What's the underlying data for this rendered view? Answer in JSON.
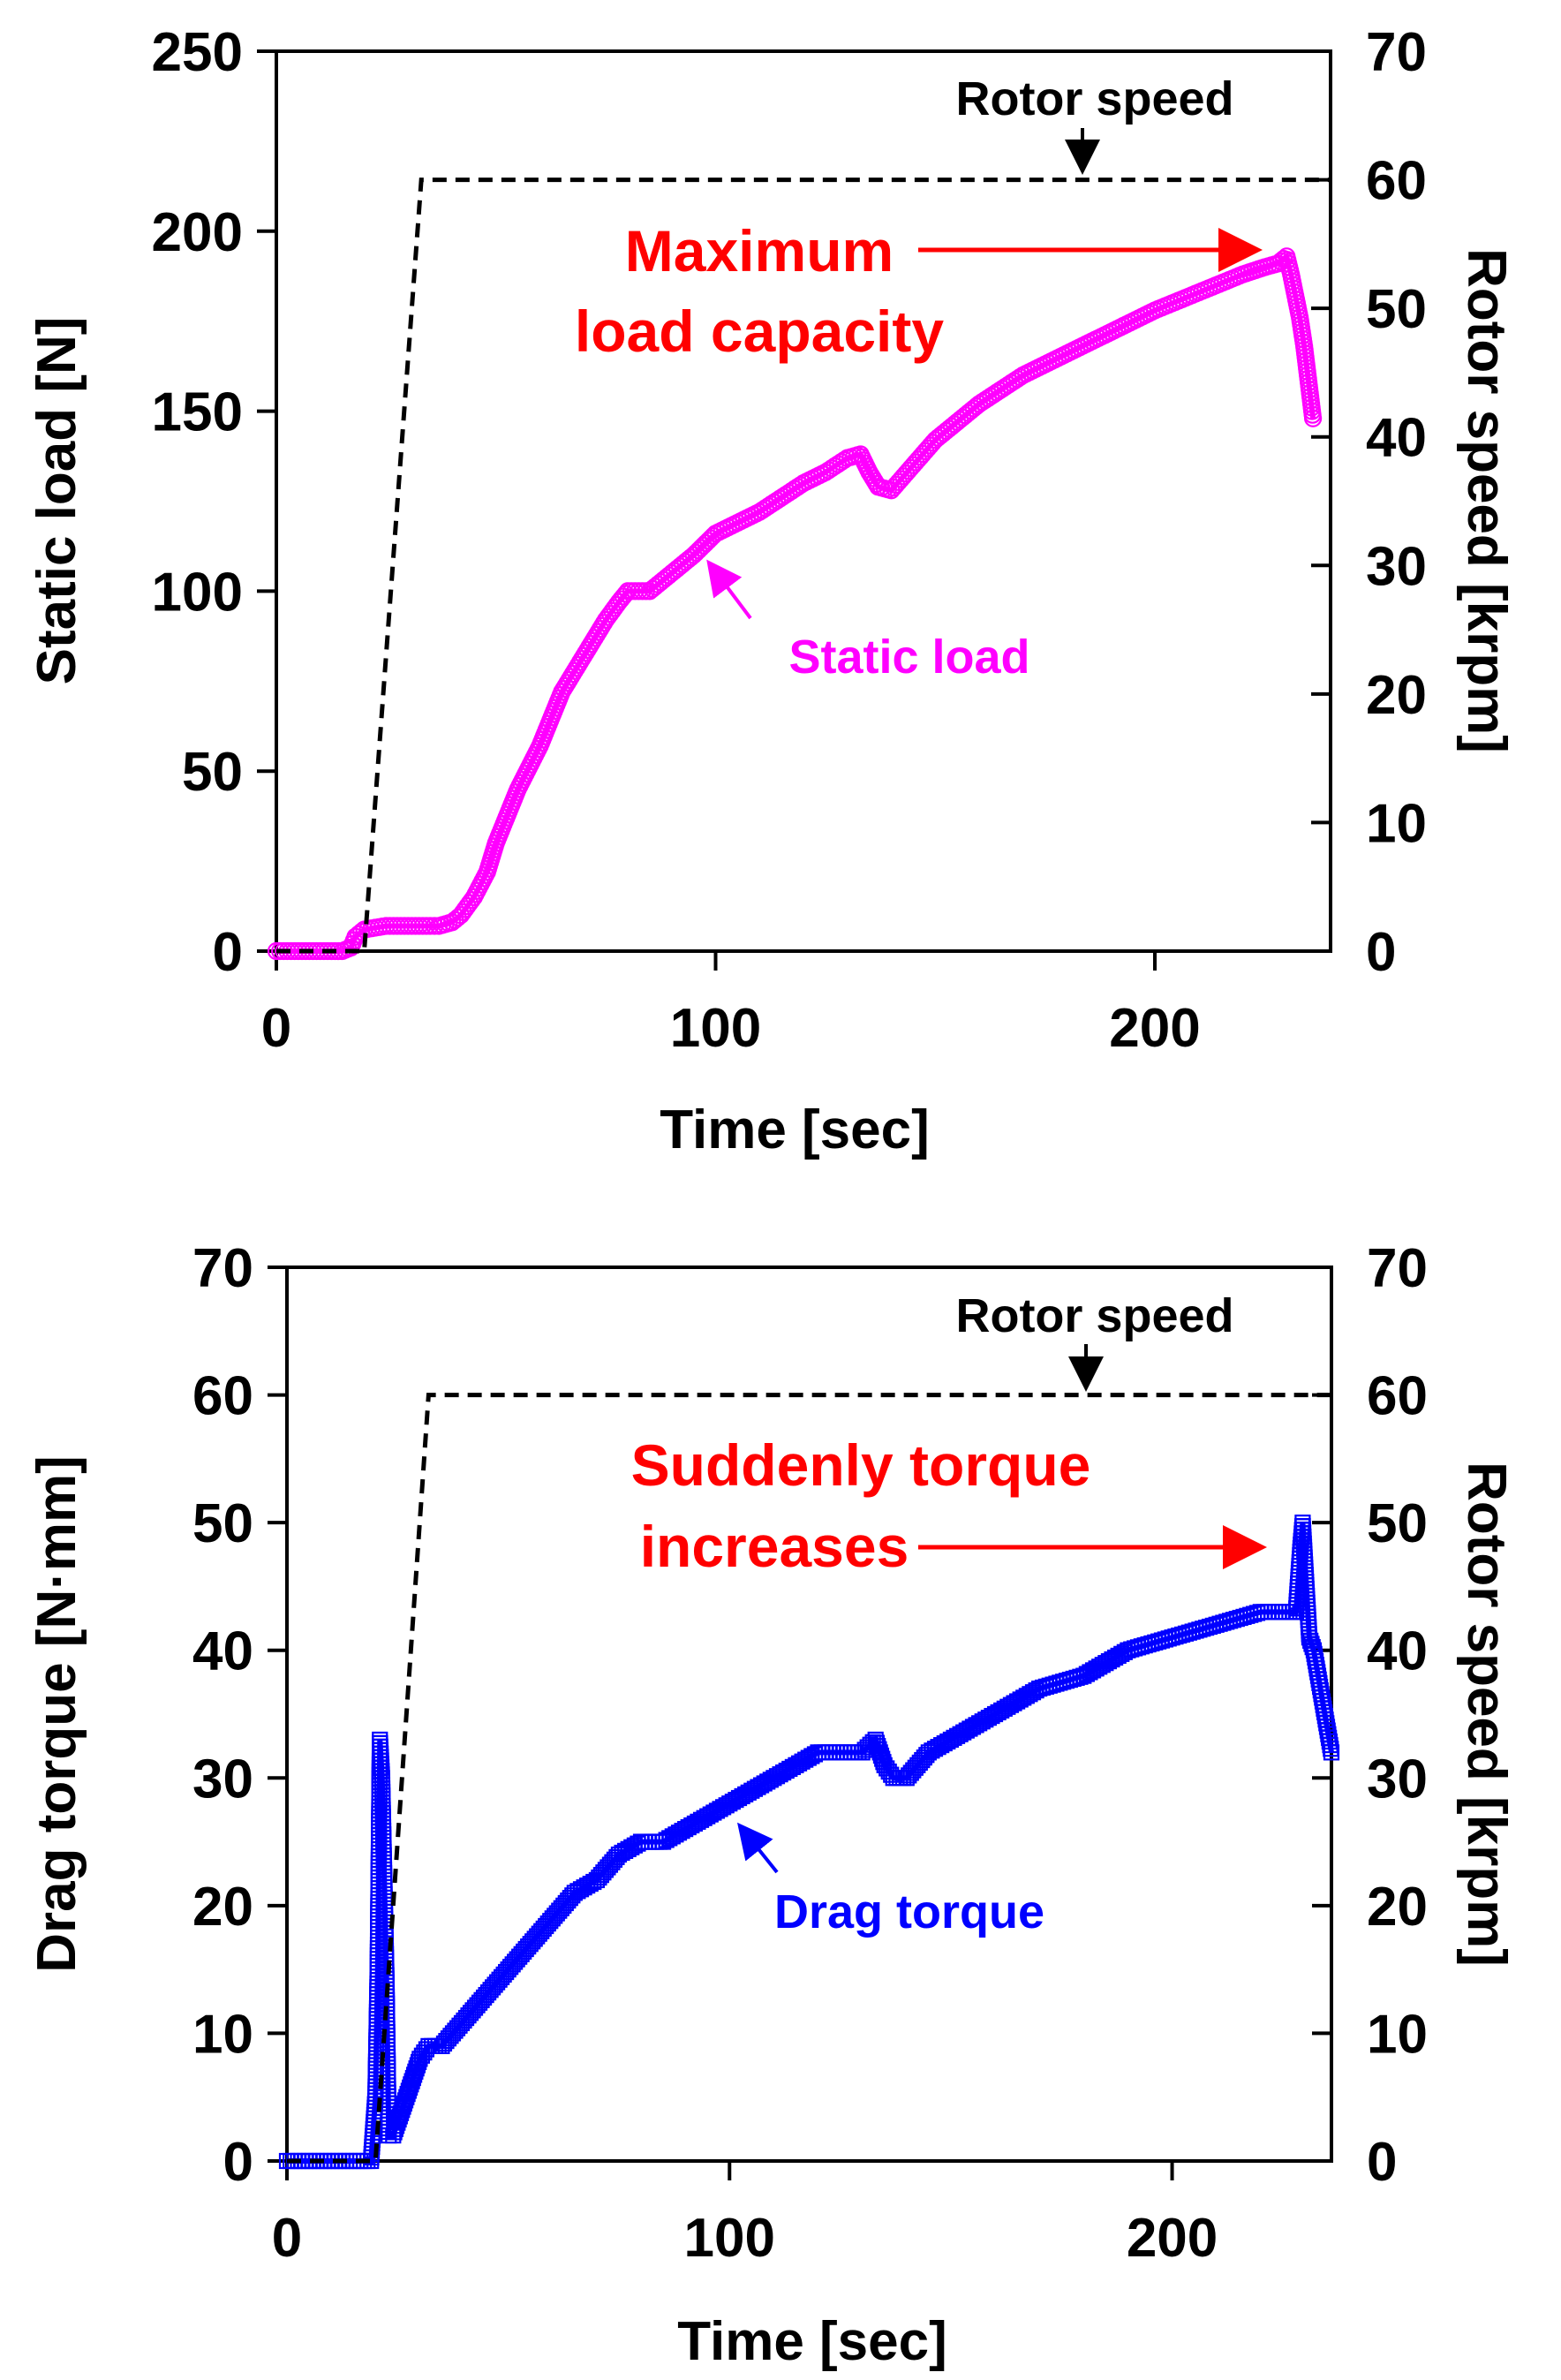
{
  "chart_data": [
    {
      "type": "line",
      "xlabel": "Time [sec]",
      "ylabel": "Static load [N]",
      "y2label": "Rotor speed [krpm]",
      "xlim": [
        0,
        240
      ],
      "ylim": [
        0,
        250
      ],
      "y2lim": [
        0,
        70
      ],
      "xticks": [
        "0",
        "100",
        "200"
      ],
      "yticks": [
        "0",
        "50",
        "100",
        "150",
        "200",
        "250"
      ],
      "y2ticks": [
        "0",
        "10",
        "20",
        "30",
        "40",
        "50",
        "60",
        "70"
      ],
      "series": [
        {
          "name": "Static load",
          "axis": "left",
          "color": "#ff00ff",
          "marker": "circle",
          "x": [
            0,
            5,
            10,
            15,
            17,
            18,
            20,
            25,
            30,
            35,
            37,
            40,
            42,
            45,
            48,
            50,
            55,
            60,
            65,
            70,
            75,
            78,
            80,
            85,
            90,
            95,
            100,
            110,
            120,
            125,
            130,
            133,
            135,
            137,
            140,
            145,
            150,
            160,
            170,
            180,
            190,
            200,
            210,
            220,
            225,
            228,
            230,
            231,
            232,
            233,
            234,
            235,
            236
          ],
          "values": [
            0,
            0,
            0,
            0,
            1,
            4,
            6,
            7,
            7,
            7,
            7,
            8,
            10,
            15,
            22,
            30,
            45,
            57,
            72,
            82,
            92,
            97,
            100,
            100,
            105,
            110,
            116,
            122,
            130,
            133,
            137,
            138,
            133,
            129,
            128,
            135,
            142,
            152,
            160,
            166,
            172,
            178,
            183,
            188,
            190,
            191,
            193,
            188,
            182,
            176,
            168,
            158,
            148
          ]
        },
        {
          "name": "Rotor speed",
          "axis": "right",
          "color": "#000000",
          "dash": true,
          "x": [
            0,
            20,
            33,
            240
          ],
          "values": [
            0,
            0,
            60,
            60
          ]
        }
      ],
      "annotations": {
        "rotor_speed": "Rotor speed",
        "static_load": "Static load",
        "max_line1": "Maximum",
        "max_line2": "load capacity"
      }
    },
    {
      "type": "line",
      "xlabel": "Time [sec]",
      "ylabel": "Drag torque [N·mm]",
      "y2label": "Rotor speed [krpm]",
      "xlim": [
        0,
        236
      ],
      "ylim": [
        0,
        70
      ],
      "y2lim": [
        0,
        70
      ],
      "xticks": [
        "0",
        "100",
        "200"
      ],
      "yticks": [
        "0",
        "10",
        "20",
        "30",
        "40",
        "50",
        "60",
        "70"
      ],
      "y2ticks": [
        "0",
        "10",
        "20",
        "30",
        "40",
        "50",
        "60",
        "70"
      ],
      "series": [
        {
          "name": "Drag torque",
          "axis": "left",
          "color": "#0000ff",
          "marker": "square",
          "x": [
            0,
            5,
            10,
            15,
            19,
            20,
            20.5,
            21,
            21.5,
            22,
            22.5,
            23,
            24,
            26,
            28,
            30,
            32,
            35,
            40,
            45,
            50,
            55,
            60,
            65,
            70,
            75,
            80,
            85,
            90,
            95,
            100,
            110,
            120,
            125,
            130,
            133,
            135,
            137,
            140,
            145,
            150,
            160,
            170,
            180,
            190,
            200,
            210,
            220,
            225,
            228,
            229,
            229.5,
            230,
            230.5,
            231,
            232,
            233,
            234,
            235,
            236
          ],
          "values": [
            0,
            0,
            0,
            0,
            0,
            5,
            15,
            33,
            30,
            22,
            14,
            2,
            2,
            4,
            6,
            8,
            9,
            9,
            11,
            13,
            15,
            17,
            19,
            21,
            22,
            24,
            25,
            25,
            26,
            27,
            28,
            30,
            32,
            32,
            32,
            33,
            31,
            30,
            30,
            32,
            33,
            35,
            37,
            38,
            40,
            41,
            42,
            43,
            43,
            43,
            48,
            50,
            47,
            44,
            41,
            40,
            38,
            36,
            34,
            32
          ]
        },
        {
          "name": "Rotor speed",
          "axis": "right",
          "color": "#000000",
          "dash": true,
          "x": [
            0,
            20,
            32,
            236
          ],
          "values": [
            0,
            0,
            60,
            60
          ]
        }
      ],
      "annotations": {
        "rotor_speed": "Rotor speed",
        "drag_torque": "Drag torque",
        "sudden_line1": "Suddenly torque",
        "sudden_line2": "increases"
      }
    }
  ]
}
